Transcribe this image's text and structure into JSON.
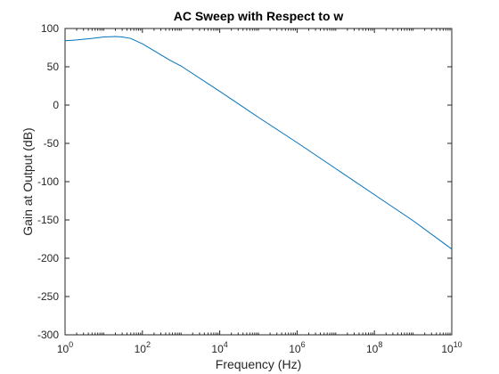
{
  "chart_data": {
    "type": "line",
    "title": "AC Sweep with Respect to w",
    "xlabel": "Frequency (Hz)",
    "ylabel": "Gain at Output (dB)",
    "xscale": "log",
    "xlim": [
      1,
      10000000000
    ],
    "ylim": [
      -300,
      100
    ],
    "grid": false,
    "legend": "none",
    "x_ticks": [
      {
        "base": "10",
        "exp": "0",
        "value": 1
      },
      {
        "base": "10",
        "exp": "2",
        "value": 100
      },
      {
        "base": "10",
        "exp": "4",
        "value": 10000
      },
      {
        "base": "10",
        "exp": "6",
        "value": 1000000
      },
      {
        "base": "10",
        "exp": "8",
        "value": 100000000
      },
      {
        "base": "10",
        "exp": "10",
        "value": 10000000000
      }
    ],
    "y_ticks": [
      "100",
      "50",
      "0",
      "-50",
      "-100",
      "-150",
      "-200",
      "-250",
      "-300"
    ],
    "series_color": "#0072BD",
    "series": [
      {
        "x": [
          1,
          2,
          5,
          10,
          20,
          30,
          50,
          100,
          200,
          500,
          1000,
          10000,
          100000,
          1000000,
          10000000,
          100000000,
          1000000000,
          10000000000
        ],
        "y": [
          84,
          85,
          87,
          89,
          89.5,
          89,
          87,
          80,
          71,
          59,
          51,
          18,
          -16,
          -49,
          -83,
          -117,
          -151,
          -188
        ]
      }
    ]
  }
}
